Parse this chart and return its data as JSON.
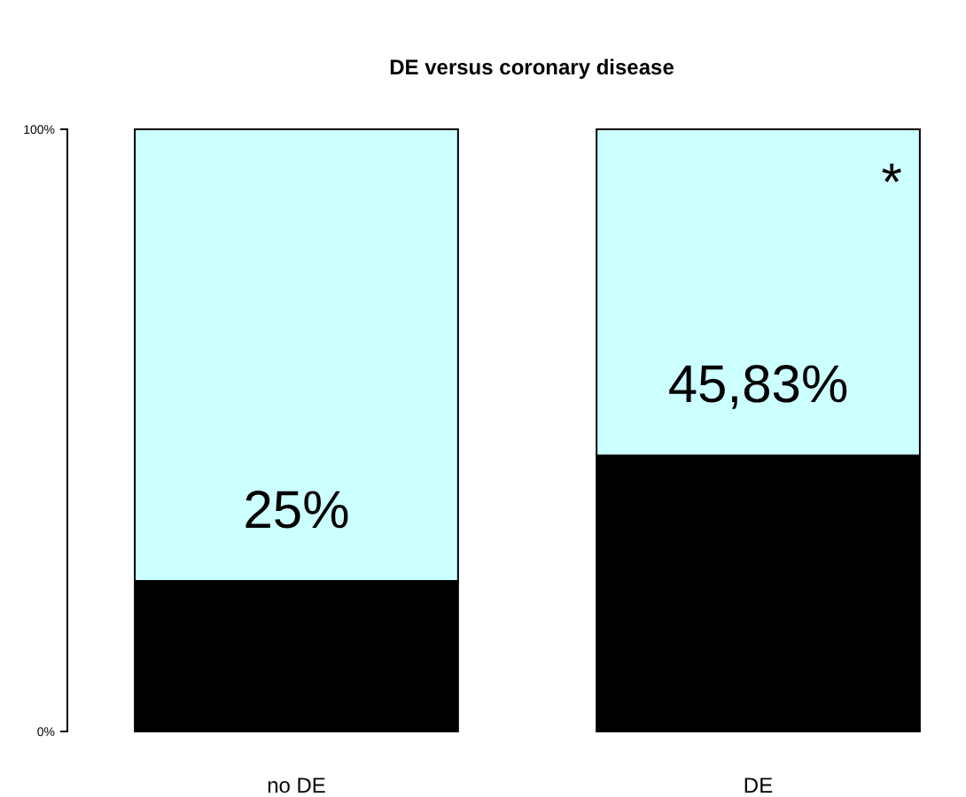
{
  "chart_data": {
    "type": "bar",
    "title": "DE versus coronary disease",
    "categories": [
      "no DE",
      "DE"
    ],
    "stacked": true,
    "series": [
      {
        "color": "#000000",
        "values": [
          25,
          45.83
        ],
        "value_labels": [
          "25%",
          "45,83%"
        ]
      },
      {
        "color": "#ccffff",
        "values": [
          75,
          54.17
        ]
      }
    ],
    "ylim": [
      0,
      100
    ],
    "yticks": [
      {
        "value": 0,
        "label": "0%"
      },
      {
        "value": 100,
        "label": "100%"
      }
    ],
    "grid": false,
    "annotations": [
      "*"
    ]
  }
}
